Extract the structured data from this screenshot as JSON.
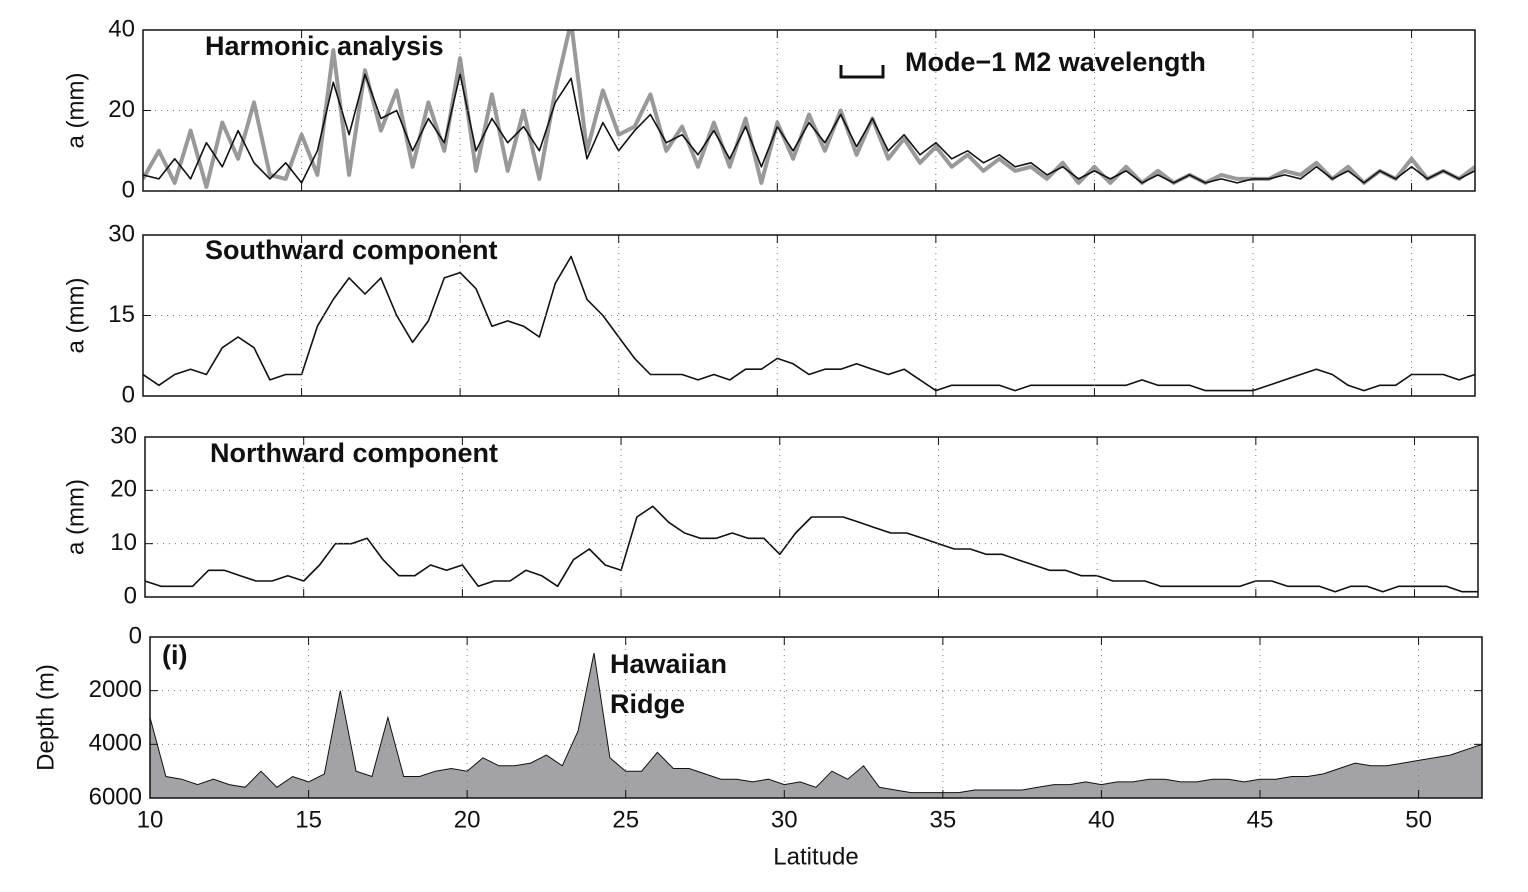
{
  "chart_data": [
    {
      "type": "line",
      "title": "Harmonic analysis",
      "annotations": [
        "Mode−1 M2 wavelength"
      ],
      "ylabel": "a (mm)",
      "x": [
        10,
        10.5,
        11,
        11.5,
        12,
        12.5,
        13,
        13.5,
        14,
        14.5,
        15,
        15.5,
        16,
        16.5,
        17,
        17.5,
        18,
        18.5,
        19,
        19.5,
        20,
        20.5,
        21,
        21.5,
        22,
        22.5,
        23,
        23.5,
        24,
        24.5,
        25,
        25.5,
        26,
        26.5,
        27,
        27.5,
        28,
        28.5,
        29,
        29.5,
        30,
        30.5,
        31,
        31.5,
        32,
        32.5,
        33,
        33.5,
        34,
        34.5,
        35,
        35.5,
        36,
        36.5,
        37,
        37.5,
        38,
        38.5,
        39,
        39.5,
        40,
        40.5,
        41,
        41.5,
        42,
        42.5,
        43,
        43.5,
        44,
        44.5,
        45,
        45.5,
        46,
        46.5,
        47,
        47.5,
        48,
        48.5,
        49,
        49.5,
        50,
        50.5,
        51,
        51.5,
        52
      ],
      "series": [
        {
          "color": "#999999",
          "width": 4,
          "values": [
            3,
            10,
            2,
            15,
            1,
            17,
            8,
            22,
            4,
            3,
            14,
            4,
            35,
            4,
            30,
            15,
            25,
            6,
            22,
            10,
            33,
            5,
            24,
            5,
            20,
            3,
            25,
            42,
            10,
            25,
            14,
            16,
            24,
            10,
            16,
            6,
            17,
            6,
            18,
            2,
            17,
            8,
            19,
            10,
            20,
            9,
            18,
            8,
            13,
            7,
            11,
            6,
            9,
            5,
            8,
            5,
            6,
            3,
            7,
            2,
            6,
            2,
            6,
            2,
            5,
            2,
            4,
            2,
            4,
            3,
            3,
            3,
            5,
            4,
            7,
            3,
            6,
            2,
            5,
            3,
            8,
            3,
            5,
            3,
            6
          ]
        },
        {
          "color": "#111111",
          "width": 1.6,
          "values": [
            4,
            3,
            8,
            3,
            12,
            6,
            15,
            7,
            3,
            7,
            2,
            10,
            27,
            14,
            29,
            18,
            20,
            10,
            18,
            12,
            29,
            10,
            18,
            12,
            16,
            10,
            22,
            28,
            8,
            17,
            10,
            15,
            19,
            12,
            14,
            9,
            15,
            8,
            16,
            6,
            16,
            10,
            17,
            12,
            19,
            11,
            18,
            10,
            14,
            9,
            12,
            8,
            10,
            7,
            9,
            6,
            7,
            4,
            6,
            3,
            5,
            3,
            5,
            2,
            4,
            2,
            4,
            2,
            3,
            2,
            3,
            3,
            4,
            3,
            6,
            3,
            5,
            2,
            5,
            3,
            6,
            3,
            5,
            3,
            5
          ]
        }
      ],
      "xlim": [
        10,
        52
      ],
      "xticks": [
        10,
        15,
        20,
        25,
        30,
        35,
        40,
        45,
        50
      ],
      "ylim": [
        0,
        40
      ],
      "yticks": [
        0,
        20,
        40
      ],
      "grid": true
    },
    {
      "type": "line",
      "title": "Southward component",
      "ylabel": "a (mm)",
      "x": [
        10,
        10.5,
        11,
        11.5,
        12,
        12.5,
        13,
        13.5,
        14,
        14.5,
        15,
        15.5,
        16,
        16.5,
        17,
        17.5,
        18,
        18.5,
        19,
        19.5,
        20,
        20.5,
        21,
        21.5,
        22,
        22.5,
        23,
        23.5,
        24,
        24.5,
        25,
        25.5,
        26,
        26.5,
        27,
        27.5,
        28,
        28.5,
        29,
        29.5,
        30,
        30.5,
        31,
        31.5,
        32,
        32.5,
        33,
        33.5,
        34,
        34.5,
        35,
        35.5,
        36,
        36.5,
        37,
        37.5,
        38,
        38.5,
        39,
        39.5,
        40,
        40.5,
        41,
        41.5,
        42,
        42.5,
        43,
        43.5,
        44,
        44.5,
        45,
        45.5,
        46,
        46.5,
        47,
        47.5,
        48,
        48.5,
        49,
        49.5,
        50,
        50.5,
        51,
        51.5,
        52
      ],
      "series": [
        {
          "color": "#111111",
          "width": 1.6,
          "values": [
            4,
            2,
            4,
            5,
            4,
            9,
            11,
            9,
            3,
            4,
            4,
            13,
            18,
            22,
            19,
            22,
            15,
            10,
            14,
            22,
            23,
            20,
            13,
            14,
            13,
            11,
            21,
            26,
            18,
            15,
            11,
            7,
            4,
            4,
            4,
            3,
            4,
            3,
            5,
            5,
            7,
            6,
            4,
            5,
            5,
            6,
            5,
            4,
            5,
            3,
            1,
            2,
            2,
            2,
            2,
            1,
            2,
            2,
            2,
            2,
            2,
            2,
            2,
            3,
            2,
            2,
            2,
            1,
            1,
            1,
            1,
            2,
            3,
            4,
            5,
            4,
            2,
            1,
            2,
            2,
            4,
            4,
            4,
            3,
            4
          ]
        }
      ],
      "xlim": [
        10,
        52
      ],
      "xticks": [
        10,
        15,
        20,
        25,
        30,
        35,
        40,
        45,
        50
      ],
      "ylim": [
        0,
        30
      ],
      "yticks": [
        0,
        15,
        30
      ],
      "grid": true
    },
    {
      "type": "line",
      "title": "Northward  component",
      "ylabel": "a (mm)",
      "x": [
        10,
        10.5,
        11,
        11.5,
        12,
        12.5,
        13,
        13.5,
        14,
        14.5,
        15,
        15.5,
        16,
        16.5,
        17,
        17.5,
        18,
        18.5,
        19,
        19.5,
        20,
        20.5,
        21,
        21.5,
        22,
        22.5,
        23,
        23.5,
        24,
        24.5,
        25,
        25.5,
        26,
        26.5,
        27,
        27.5,
        28,
        28.5,
        29,
        29.5,
        30,
        30.5,
        31,
        31.5,
        32,
        32.5,
        33,
        33.5,
        34,
        34.5,
        35,
        35.5,
        36,
        36.5,
        37,
        37.5,
        38,
        38.5,
        39,
        39.5,
        40,
        40.5,
        41,
        41.5,
        42,
        42.5,
        43,
        43.5,
        44,
        44.5,
        45,
        45.5,
        46,
        46.5,
        47,
        47.5,
        48,
        48.5,
        49,
        49.5,
        50,
        50.5,
        51,
        51.5,
        52
      ],
      "series": [
        {
          "color": "#111111",
          "width": 1.6,
          "values": [
            3,
            2,
            2,
            2,
            5,
            5,
            4,
            3,
            3,
            4,
            3,
            6,
            10,
            10,
            11,
            7,
            4,
            4,
            6,
            5,
            6,
            2,
            3,
            3,
            5,
            4,
            2,
            7,
            9,
            6,
            5,
            15,
            17,
            14,
            12,
            11,
            11,
            12,
            11,
            11,
            8,
            12,
            15,
            15,
            15,
            14,
            13,
            12,
            12,
            11,
            10,
            9,
            9,
            8,
            8,
            7,
            6,
            5,
            5,
            4,
            4,
            3,
            3,
            3,
            2,
            2,
            2,
            2,
            2,
            2,
            3,
            3,
            2,
            2,
            2,
            1,
            2,
            2,
            1,
            2,
            2,
            2,
            2,
            1,
            1
          ]
        }
      ],
      "xlim": [
        10,
        52
      ],
      "xticks": [
        10,
        15,
        20,
        25,
        30,
        35,
        40,
        45,
        50
      ],
      "ylim": [
        0,
        30
      ],
      "yticks": [
        0,
        10,
        20,
        30
      ],
      "grid": true
    },
    {
      "type": "area",
      "annotations": [
        "(i)",
        "Hawaiian",
        "Ridge"
      ],
      "ylabel": "Depth (m)",
      "xlabel": "Latitude",
      "x": [
        10,
        10.5,
        11,
        11.5,
        12,
        12.5,
        13,
        13.5,
        14,
        14.5,
        15,
        15.5,
        16,
        16.5,
        17,
        17.5,
        18,
        18.5,
        19,
        19.5,
        20,
        20.5,
        21,
        21.5,
        22,
        22.5,
        23,
        23.5,
        24,
        24.5,
        25,
        25.5,
        26,
        26.5,
        27,
        27.5,
        28,
        28.5,
        29,
        29.5,
        30,
        30.5,
        31,
        31.5,
        32,
        32.5,
        33,
        33.5,
        34,
        34.5,
        35,
        35.5,
        36,
        36.5,
        37,
        37.5,
        38,
        38.5,
        39,
        39.5,
        40,
        40.5,
        41,
        41.5,
        42,
        42.5,
        43,
        43.5,
        44,
        44.5,
        45,
        45.5,
        46,
        46.5,
        47,
        47.5,
        48,
        48.5,
        49,
        49.5,
        50,
        50.5,
        51,
        51.5,
        52
      ],
      "series": [
        {
          "color": "#a3a3a7",
          "values": [
            3000,
            5200,
            5300,
            5500,
            5300,
            5500,
            5600,
            5000,
            5600,
            5200,
            5400,
            5100,
            2000,
            5000,
            5200,
            3000,
            5200,
            5200,
            5000,
            4900,
            5000,
            4500,
            4800,
            4800,
            4700,
            4400,
            4800,
            3500,
            600,
            4500,
            5000,
            5000,
            4300,
            4900,
            4900,
            5100,
            5300,
            5300,
            5400,
            5300,
            5500,
            5400,
            5600,
            5000,
            5300,
            4800,
            5600,
            5700,
            5800,
            5800,
            5800,
            5800,
            5700,
            5700,
            5700,
            5700,
            5600,
            5500,
            5500,
            5400,
            5500,
            5400,
            5400,
            5300,
            5300,
            5400,
            5400,
            5300,
            5300,
            5400,
            5300,
            5300,
            5200,
            5200,
            5100,
            4900,
            4700,
            4800,
            4800,
            4700,
            4600,
            4500,
            4400,
            4200,
            4000
          ]
        }
      ],
      "xlim": [
        10,
        52
      ],
      "xticks": [
        10,
        15,
        20,
        25,
        30,
        35,
        40,
        45,
        50
      ],
      "ylim": [
        6000,
        0
      ],
      "yticks": [
        0,
        2000,
        4000,
        6000
      ],
      "grid": true
    }
  ]
}
